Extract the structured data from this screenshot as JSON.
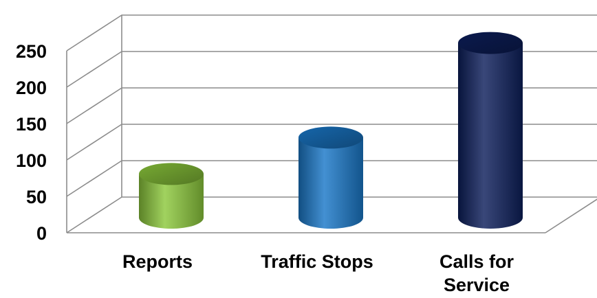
{
  "chart_data": {
    "type": "bar",
    "style": "3d-cylinder",
    "categories": [
      {
        "lines": [
          "Reports"
        ]
      },
      {
        "lines": [
          "Traffic Stops"
        ]
      },
      {
        "lines": [
          "Calls for",
          "Service"
        ]
      }
    ],
    "values": [
      60,
      110,
      240
    ],
    "colors": [
      "#8cc83c",
      "#1a78c8",
      "#0d1f5c"
    ],
    "ylim": [
      0,
      250
    ],
    "yticks": [
      "0",
      "50",
      "100",
      "150",
      "200",
      "250"
    ],
    "grid": true,
    "legend": "none"
  }
}
